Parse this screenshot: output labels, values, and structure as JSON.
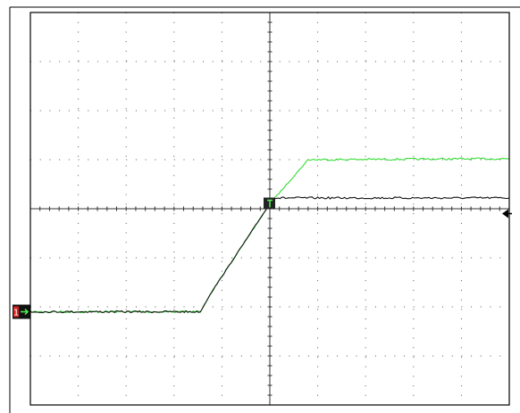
{
  "chart_data": {
    "type": "line",
    "title": "",
    "xlabel": "",
    "ylabel": "",
    "xlim": [
      -5,
      5
    ],
    "ylim": [
      -4,
      4
    ],
    "grid": true,
    "grid_style": "dotted",
    "colors": {
      "frame": "#000000",
      "grid": "#555555",
      "black_trace": "#111111",
      "green_trace": "#33dd33",
      "trigger_marker": "#222222",
      "ground_marker_fill": "#d32020",
      "ground_marker_arrow": "#55ee55"
    },
    "markers": {
      "ground_label": "1",
      "trigger_level_arrow": "left-arrow",
      "trigger_point": "square-T"
    },
    "series": [
      {
        "color": "#111111",
        "x": [
          -5.0,
          -1.45,
          -1.25,
          0.0,
          0.1,
          5.0
        ],
        "y": [
          -2.1,
          -2.1,
          -1.75,
          0.1,
          0.22,
          0.22
        ]
      },
      {
        "color": "#33dd33",
        "x": [
          -5.0,
          -1.45,
          -1.25,
          0.0,
          0.8,
          5.0
        ],
        "y": [
          -2.1,
          -2.1,
          -1.75,
          0.1,
          1.0,
          1.02
        ]
      }
    ]
  }
}
